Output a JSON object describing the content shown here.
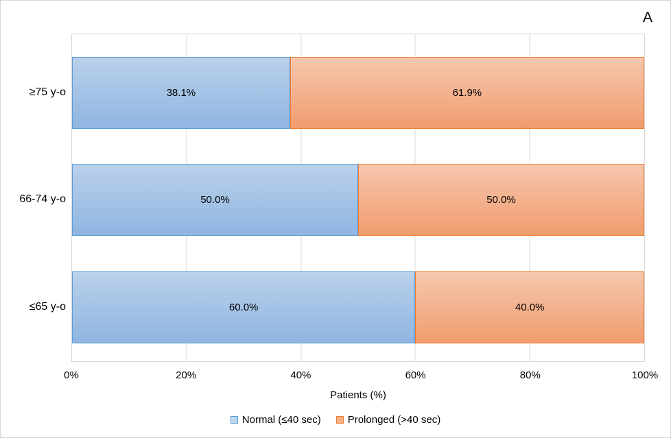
{
  "panel_label": "A",
  "chart_data": {
    "type": "bar",
    "orientation": "horizontal",
    "stacked": true,
    "title": "",
    "xlabel": "Patients (%)",
    "ylabel": "",
    "xlim": [
      0,
      100
    ],
    "grid": true,
    "legend_position": "bottom",
    "x_ticks": [
      "0%",
      "20%",
      "40%",
      "60%",
      "80%",
      "100%"
    ],
    "categories": [
      "≥75 y-o",
      "66-74 y-o",
      "≤65 y-o"
    ],
    "series": [
      {
        "name": "Normal (≤40 sec)",
        "key": "normal",
        "values": [
          38.1,
          50.0,
          60.0
        ],
        "labels": [
          "38.1%",
          "50.0%",
          "60.0%"
        ],
        "fill_top": "#BAD1EA",
        "fill_bottom": "#8FB5E1",
        "border": "#5B9BD5",
        "legend_fill": "#BDD7EE"
      },
      {
        "name": "Prolonged (>40 sec)",
        "key": "prolonged",
        "values": [
          61.9,
          50.0,
          40.0
        ],
        "labels": [
          "61.9%",
          "50.0%",
          "40.0%"
        ],
        "fill_top": "#F7C7AE",
        "fill_bottom": "#F09C6E",
        "border": "#ED7D31",
        "legend_fill": "#F4B183"
      }
    ],
    "colors": {
      "gridline": "#D9D9D9",
      "plot_border": "#D9D9D9",
      "outer_border": "#D6D6D6",
      "text": "#000000"
    }
  }
}
